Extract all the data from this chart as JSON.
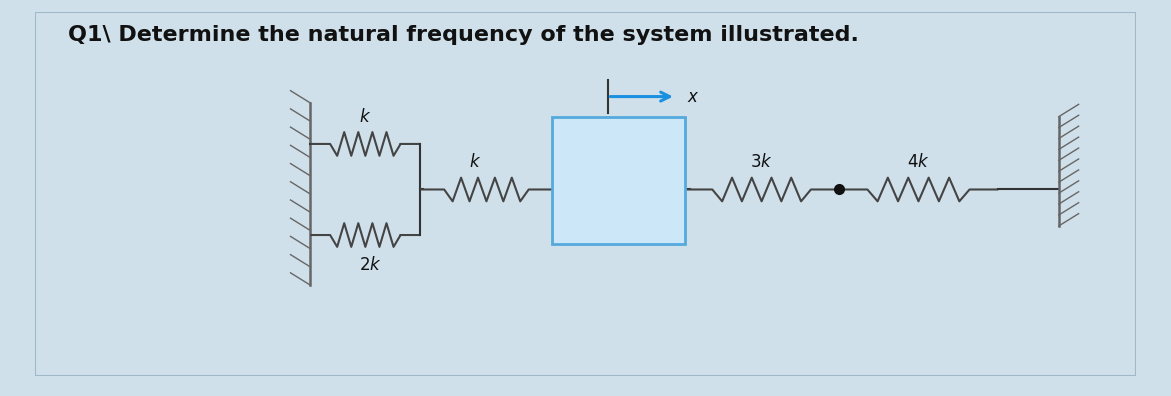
{
  "title": "Q1\\ Determine the natural frequency of the system illustrated.",
  "title_fontsize": 16,
  "title_fontweight": "bold",
  "bg_outer": "#cfe0ea",
  "bg_inner": "#ffffff",
  "border_color": "#a0b8c8",
  "colors": {
    "wall": "#666666",
    "spring": "#444444",
    "mass_face": "#cce8f8",
    "mass_edge": "#55aadd",
    "line": "#333333",
    "arrow": "#1a90e0",
    "dot": "#111111",
    "label": "#111111"
  },
  "lw_main": 1.5,
  "lw_wall": 1.8,
  "label_fontsize": 12
}
